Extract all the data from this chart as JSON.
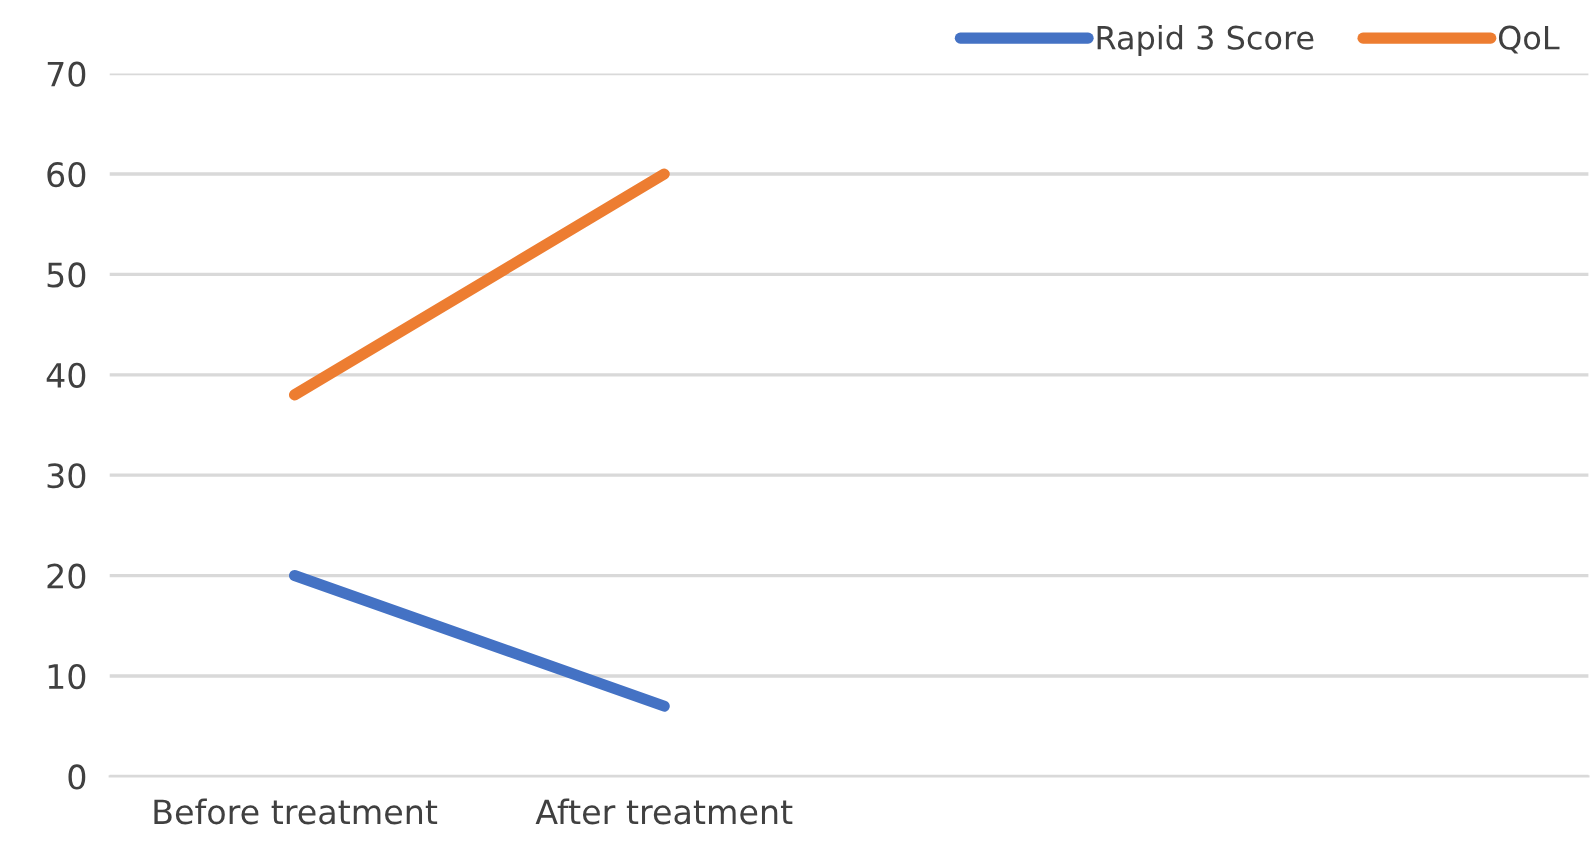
{
  "chart_data": {
    "type": "line",
    "categories": [
      "Before treatment",
      "After treatment",
      null,
      null
    ],
    "series": [
      {
        "name": "Rapid 3 Score",
        "color": "#4472c4",
        "values": [
          20,
          7,
          null,
          null
        ]
      },
      {
        "name": "QoL",
        "color": "#ed7d31",
        "values": [
          38,
          60,
          null,
          null
        ]
      }
    ],
    "ylim": [
      0,
      70
    ],
    "yticks": [
      0,
      10,
      20,
      30,
      40,
      50,
      60,
      70
    ],
    "grid": "y",
    "legend": "top right",
    "marker": "none",
    "line_style": "solid"
  }
}
